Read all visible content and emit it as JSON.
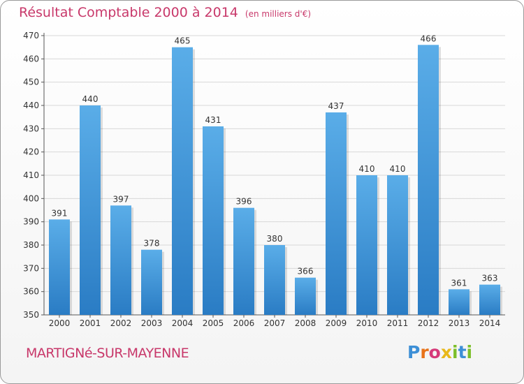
{
  "header": {
    "title": "Résultat Comptable 2000 à 2014",
    "unit": "(en milliers d'€)"
  },
  "footer": {
    "commune": "MARTIGNé-SUR-MAYENNE",
    "logo_text": "Proxiti"
  },
  "colors": {
    "accent": "#c8386a",
    "bar_light": "#5aade8",
    "bar_dark": "#2a7cc4",
    "axis": "#555555",
    "grid": "#d8d8d8"
  },
  "chart_data": {
    "type": "bar",
    "title": "Résultat Comptable 2000 à 2014",
    "subtitle": "(en milliers d'€)",
    "xlabel": "",
    "ylabel": "",
    "categories": [
      "2000",
      "2001",
      "2002",
      "2003",
      "2004",
      "2005",
      "2006",
      "2007",
      "2008",
      "2009",
      "2010",
      "2011",
      "2012",
      "2013",
      "2014"
    ],
    "values": [
      391,
      440,
      397,
      378,
      465,
      431,
      396,
      380,
      366,
      437,
      410,
      410,
      466,
      361,
      363
    ],
    "ylim": [
      350,
      470
    ],
    "yticks": [
      350,
      360,
      370,
      380,
      390,
      400,
      410,
      420,
      430,
      440,
      450,
      460,
      470
    ],
    "grid": true,
    "legend": "none"
  }
}
